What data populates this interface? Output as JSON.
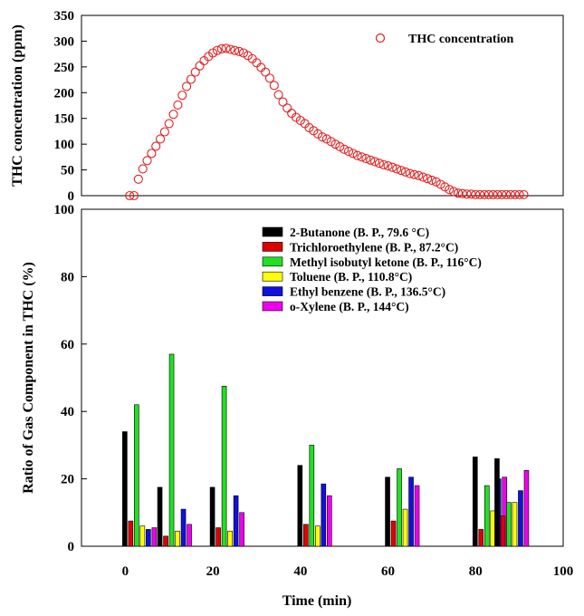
{
  "chart_data": [
    {
      "type": "scatter",
      "ylabel": "THC concentration (ppm)",
      "ylim": [
        0,
        350
      ],
      "yticks": [
        0,
        50,
        100,
        150,
        200,
        250,
        300,
        350
      ],
      "xlim": [
        -10,
        100
      ],
      "legend": {
        "placement": "top-right",
        "entries": [
          "THC concentration"
        ]
      },
      "series": [
        {
          "name": "THC concentration",
          "color": "#e02020",
          "marker": "open-circle",
          "x": [
            1,
            2,
            3,
            4,
            5,
            6,
            7,
            8,
            9,
            10,
            11,
            12,
            13,
            14,
            15,
            16,
            17,
            18,
            19,
            20,
            21,
            22,
            23,
            24,
            25,
            26,
            27,
            28,
            29,
            30,
            31,
            32,
            33,
            34,
            35,
            36,
            37,
            38,
            39,
            40,
            41,
            42,
            43,
            44,
            45,
            46,
            47,
            48,
            49,
            50,
            51,
            52,
            53,
            54,
            55,
            56,
            57,
            58,
            59,
            60,
            61,
            62,
            63,
            64,
            65,
            66,
            67,
            68,
            69,
            70,
            71,
            72,
            73,
            74,
            75,
            76,
            77,
            78,
            79,
            80,
            81,
            82,
            83,
            84,
            85,
            86,
            87,
            88,
            89,
            90,
            91
          ],
          "y": [
            0,
            0,
            32,
            52,
            68,
            82,
            96,
            110,
            124,
            140,
            158,
            176,
            195,
            212,
            226,
            240,
            252,
            262,
            270,
            277,
            282,
            285,
            286,
            284,
            282,
            280,
            277,
            272,
            266,
            258,
            249,
            240,
            228,
            214,
            196,
            182,
            170,
            160,
            152,
            146,
            140,
            132,
            126,
            120,
            114,
            110,
            105,
            100,
            95,
            90,
            86,
            82,
            78,
            75,
            72,
            69,
            66,
            63,
            60,
            58,
            55,
            52,
            49,
            46,
            43,
            41,
            39,
            36,
            33,
            30,
            27,
            22,
            17,
            12,
            8,
            5,
            4,
            3,
            3,
            2,
            2,
            2,
            2,
            2,
            2,
            2,
            2,
            2,
            2,
            2,
            2
          ]
        }
      ]
    },
    {
      "type": "bar",
      "ylabel": "Ratio of Gas Component in THC (%)",
      "xlabel": "Time (min)",
      "xlim": [
        -10,
        100
      ],
      "xticks": [
        0,
        20,
        40,
        60,
        80,
        100
      ],
      "ylim": [
        0,
        100
      ],
      "yticks": [
        0,
        20,
        40,
        60,
        80,
        100
      ],
      "legend": {
        "placement": "top-right"
      },
      "groups": [
        0,
        8,
        20,
        40,
        60,
        80,
        85
      ],
      "series": [
        {
          "name": "2-Butanone (B. P., 79.6 °C)",
          "color": "#000000",
          "values": [
            34,
            17.5,
            17.5,
            24,
            20.5,
            26.5,
            26
          ]
        },
        {
          "name": "Trichloroethylene (B. P., 87.2°C)",
          "color": "#e00000",
          "values": [
            7.5,
            3,
            5.5,
            6.5,
            7.5,
            5,
            9
          ]
        },
        {
          "name": "Methyl isobutyl ketone (B. P., 116°C)",
          "color": "#22e022",
          "values": [
            42,
            57,
            47.5,
            30,
            23,
            18,
            13
          ]
        },
        {
          "name": "Toluene (B. P., 110.8°C)",
          "color": "#ffff00",
          "values": [
            6,
            4.5,
            4.5,
            6,
            11,
            10.5,
            13
          ]
        },
        {
          "name": "Ethyl benzene (B. P., 136.5°C)",
          "color": "#1010e0",
          "values": [
            5,
            11,
            15,
            18.5,
            20.5,
            20,
            16.5
          ]
        },
        {
          "name": "o-Xylene (B. P., 144°C)",
          "color": "#ee00ee",
          "values": [
            5.5,
            6.5,
            10,
            15,
            18,
            20.5,
            22.5
          ]
        }
      ]
    }
  ]
}
